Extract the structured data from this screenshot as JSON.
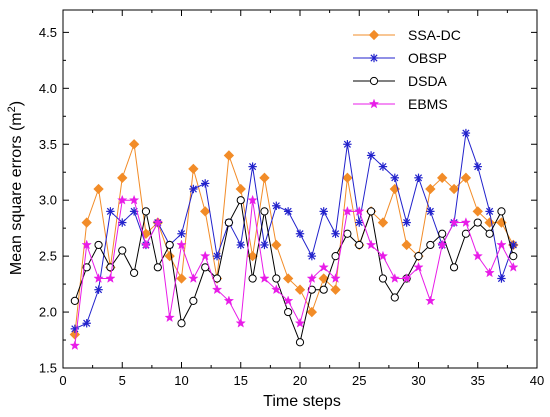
{
  "chart_data": {
    "type": "line",
    "xlabel": "Time steps",
    "ylabel_main": "Mean square errors (m",
    "ylabel_sup": "2",
    "ylabel_close": ")",
    "xlim": [
      0,
      40
    ],
    "ylim": [
      1.5,
      4.7
    ],
    "xticks": [
      0,
      5,
      10,
      15,
      20,
      25,
      30,
      35,
      40
    ],
    "yticks": [
      1.5,
      2.0,
      2.5,
      3.0,
      3.5,
      4.0,
      4.5
    ],
    "xtick_labels": [
      "0",
      "5",
      "10",
      "15",
      "20",
      "25",
      "30",
      "35",
      "40"
    ],
    "ytick_labels": [
      "1.5",
      "2.0",
      "2.5",
      "3.0",
      "3.5",
      "4.0",
      "4.5"
    ],
    "legend_position": "top-right",
    "grid": false,
    "x": [
      1,
      2,
      3,
      4,
      5,
      6,
      7,
      8,
      9,
      10,
      11,
      12,
      13,
      14,
      15,
      16,
      17,
      18,
      19,
      20,
      21,
      22,
      23,
      24,
      25,
      26,
      27,
      28,
      29,
      30,
      31,
      32,
      33,
      34,
      35,
      36,
      37,
      38
    ],
    "series": [
      {
        "name": "SSA-DC",
        "color": "#f28c28",
        "marker": "diamond",
        "values": [
          1.8,
          2.8,
          3.1,
          2.4,
          3.2,
          3.5,
          2.7,
          2.8,
          2.5,
          2.3,
          3.28,
          2.9,
          2.3,
          3.4,
          3.1,
          2.5,
          3.2,
          2.6,
          2.3,
          2.2,
          2.0,
          2.3,
          2.2,
          3.2,
          2.6,
          2.9,
          2.8,
          3.1,
          2.6,
          2.5,
          3.1,
          3.2,
          3.1,
          3.2,
          2.9,
          2.8,
          2.8,
          2.6
        ]
      },
      {
        "name": "OBSP",
        "color": "#2222cc",
        "marker": "asterisk",
        "values": [
          1.85,
          1.9,
          2.2,
          2.9,
          2.8,
          2.9,
          2.6,
          2.8,
          2.6,
          2.7,
          3.1,
          3.15,
          2.5,
          2.8,
          2.6,
          3.3,
          2.6,
          2.95,
          2.9,
          2.7,
          2.5,
          2.9,
          2.7,
          3.5,
          2.8,
          3.4,
          3.3,
          3.2,
          2.8,
          3.2,
          2.9,
          2.6,
          2.8,
          3.6,
          3.3,
          2.9,
          2.3,
          2.6
        ]
      },
      {
        "name": "DSDA",
        "color": "#000000",
        "marker": "circle",
        "values": [
          2.1,
          2.4,
          2.6,
          2.4,
          2.55,
          2.35,
          2.9,
          2.4,
          2.6,
          1.9,
          2.1,
          2.4,
          2.3,
          2.8,
          3.0,
          2.3,
          2.9,
          2.3,
          2.0,
          1.73,
          2.2,
          2.2,
          2.5,
          2.7,
          2.6,
          2.9,
          2.3,
          2.13,
          2.3,
          2.5,
          2.6,
          2.7,
          2.4,
          2.7,
          2.8,
          2.7,
          2.9,
          2.5
        ]
      },
      {
        "name": "EBMS",
        "color": "#e81ce8",
        "marker": "star",
        "values": [
          1.7,
          2.6,
          2.3,
          2.3,
          3.0,
          3.0,
          2.6,
          2.8,
          1.95,
          2.6,
          2.3,
          2.5,
          2.2,
          2.1,
          1.9,
          3.0,
          2.3,
          2.2,
          2.1,
          1.9,
          2.3,
          2.4,
          2.3,
          2.9,
          2.9,
          2.6,
          2.5,
          2.3,
          2.3,
          2.4,
          2.1,
          2.6,
          2.8,
          2.8,
          2.5,
          2.35,
          2.6,
          2.4
        ]
      }
    ]
  }
}
